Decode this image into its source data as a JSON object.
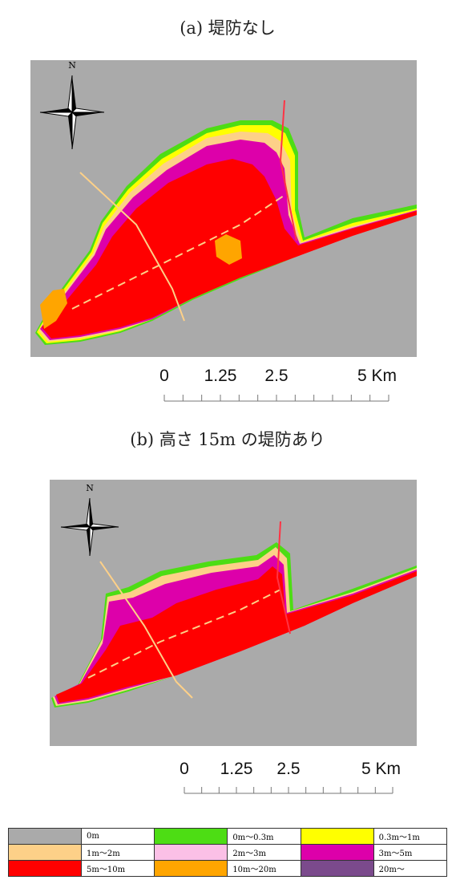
{
  "panels": [
    {
      "title": "(a) 堤防なし",
      "north": "N",
      "scale": [
        "0",
        "1.25",
        "2.5",
        "5 Km"
      ]
    },
    {
      "title": "(b) 高さ 15m の堤防あり",
      "north": "N",
      "scale": [
        "0",
        "1.25",
        "2.5",
        "5 Km"
      ]
    }
  ],
  "legend": [
    {
      "label": "0m",
      "color": "#aaaaaa"
    },
    {
      "label": "0m～0.3m",
      "color": "#4ddd14"
    },
    {
      "label": "0.3m～1m",
      "color": "#ffff00"
    },
    {
      "label": "1m～2m",
      "color": "#fdd088"
    },
    {
      "label": "2m～3m",
      "color": "#fbc0e6"
    },
    {
      "label": "3m～5m",
      "color": "#dd00aa"
    },
    {
      "label": "5m～10m",
      "color": "#ff0000"
    },
    {
      "label": "10m～20m",
      "color": "#ffa500"
    },
    {
      "label": "20m～",
      "color": "#7b4a8c"
    }
  ]
}
